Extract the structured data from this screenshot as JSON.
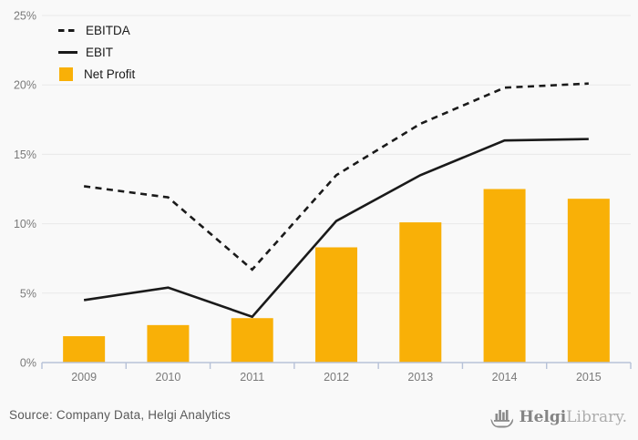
{
  "chart_data": {
    "type": "bar",
    "title": "",
    "categories": [
      "2009",
      "2010",
      "2011",
      "2012",
      "2013",
      "2014",
      "2015"
    ],
    "series": [
      {
        "name": "EBITDA",
        "kind": "line",
        "style": "dashed",
        "color": "#1a1a1a",
        "values": [
          12.7,
          11.9,
          6.7,
          13.5,
          17.2,
          19.8,
          20.1
        ]
      },
      {
        "name": "EBIT",
        "kind": "line",
        "style": "solid",
        "color": "#1a1a1a",
        "values": [
          4.5,
          5.4,
          3.3,
          10.2,
          13.5,
          16.0,
          16.1
        ]
      },
      {
        "name": "Net Profit",
        "kind": "bar",
        "style": "solid",
        "color": "#f9b007",
        "values": [
          1.9,
          2.7,
          3.2,
          8.3,
          10.1,
          12.5,
          11.8
        ]
      }
    ],
    "xlabel": "",
    "ylabel": "",
    "ylim": [
      0,
      25
    ],
    "ytick_step": 5,
    "ytick_labels": [
      "0%",
      "5%",
      "10%",
      "15%",
      "20%",
      "25%"
    ],
    "grid": true,
    "legend_position": "top-left"
  },
  "colors": {
    "background": "#f9f9f9",
    "gridline": "#e9e9e9",
    "axis": "#b7c2d8",
    "tick_label": "#7a7a7a",
    "bar": "#f9b007",
    "line": "#1a1a1a"
  },
  "footer": {
    "source": "Source: Company Data, Helgi Analytics",
    "logo_helgi": "Helgi",
    "logo_library": "Library."
  }
}
